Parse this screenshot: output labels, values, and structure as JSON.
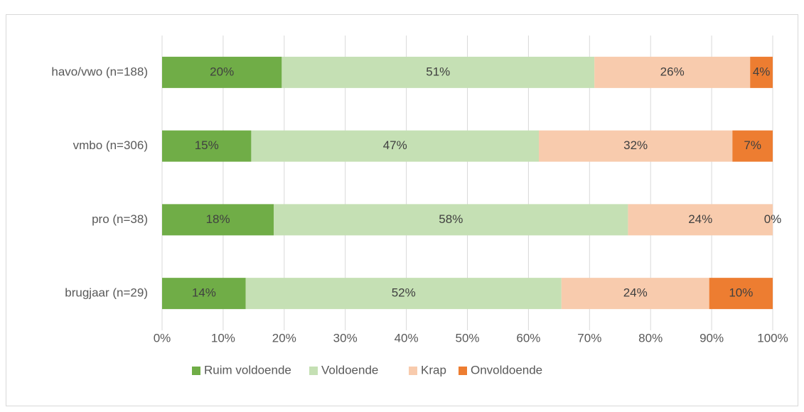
{
  "chart_data": {
    "type": "stacked_bar_horizontal",
    "categories": [
      "havo/vwo (n=188)",
      "vmbo (n=306)",
      "pro (n=38)",
      "brugjaar (n=29)"
    ],
    "series": [
      {
        "name": "Ruim voldoende",
        "color": "#70ad47",
        "values": [
          19.6,
          14.6,
          18.3,
          13.7
        ],
        "value_labels": [
          "20%",
          "15%",
          "18%",
          "14%"
        ]
      },
      {
        "name": "Voldoende",
        "color": "#c5e0b4",
        "values": [
          51.2,
          47.1,
          58.0,
          51.7
        ],
        "value_labels": [
          "51%",
          "47%",
          "58%",
          "52%"
        ]
      },
      {
        "name": "Krap",
        "color": "#f8cbad",
        "values": [
          25.5,
          31.7,
          23.7,
          24.2
        ],
        "value_labels": [
          "26%",
          "32%",
          "24%",
          "24%"
        ]
      },
      {
        "name": "Onvoldoende",
        "color": "#ed7d31",
        "values": [
          3.7,
          6.6,
          0,
          10.4
        ],
        "value_labels": [
          "4%",
          "7%",
          "0%",
          "10%"
        ]
      }
    ],
    "xlim": [
      0,
      100
    ],
    "xticks": [
      {
        "value": 0,
        "label": "0%"
      },
      {
        "value": 10,
        "label": "10%"
      },
      {
        "value": 20,
        "label": "20%"
      },
      {
        "value": 30,
        "label": "30%"
      },
      {
        "value": 40,
        "label": "40%"
      },
      {
        "value": 50,
        "label": "50%"
      },
      {
        "value": 60,
        "label": "60%"
      },
      {
        "value": 70,
        "label": "70%"
      },
      {
        "value": 80,
        "label": "80%"
      },
      {
        "value": 90,
        "label": "90%"
      },
      {
        "value": 100,
        "label": "100%"
      }
    ],
    "grid": true,
    "legend": "bottom"
  }
}
